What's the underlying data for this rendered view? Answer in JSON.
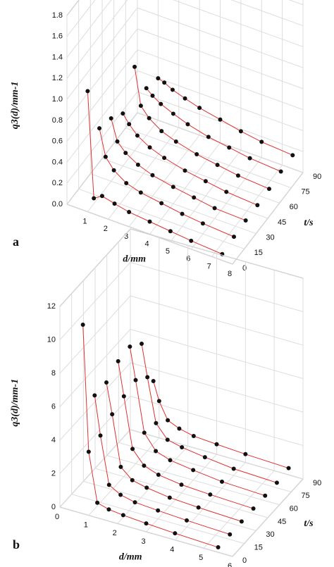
{
  "chart_data": [
    {
      "type": "line3d",
      "panel_label": "a",
      "x_label": "d/mm",
      "y_label": "t/s",
      "z_label": "q3(d)/mm-1",
      "xlim": [
        0,
        8
      ],
      "xticks": [
        1,
        2,
        3,
        4,
        5,
        6,
        7,
        8
      ],
      "ylim": [
        0,
        90
      ],
      "yticks": [
        0,
        15,
        30,
        45,
        60,
        75,
        90
      ],
      "zlim": [
        0,
        1.8
      ],
      "zticks": [
        {
          "value": 0,
          "label": "0.0"
        },
        {
          "value": 0.2,
          "label": "0.2"
        },
        {
          "value": 0.4,
          "label": "0.4"
        },
        {
          "value": 0.6,
          "label": "0.6"
        },
        {
          "value": 0.8,
          "label": "0.8"
        },
        {
          "value": 1,
          "label": "1.0"
        },
        {
          "value": 1.2,
          "label": "1.2"
        },
        {
          "value": 1.4,
          "label": "1.4"
        },
        {
          "value": 1.6,
          "label": "1.6"
        },
        {
          "value": 1.8,
          "label": "1.8"
        }
      ],
      "grid": true,
      "line_color": "#e03030",
      "marker_color": "#111111",
      "x": [
        1,
        1.3,
        1.7,
        2.3,
        3,
        4,
        5,
        6,
        7.5
      ],
      "series": [
        {
          "t": 0,
          "values": [
            1.15,
            0.15,
            0.2,
            0.17,
            0.14,
            0.12,
            0.1,
            0.08,
            0.06
          ]
        },
        {
          "t": 15,
          "values": [
            0.65,
            0.4,
            0.3,
            0.22,
            0.18,
            0.15,
            0.12,
            0.1,
            0.08
          ]
        },
        {
          "t": 30,
          "values": [
            0.6,
            0.4,
            0.32,
            0.25,
            0.2,
            0.16,
            0.13,
            0.1,
            0.09
          ]
        },
        {
          "t": 45,
          "values": [
            0.5,
            0.42,
            0.34,
            0.27,
            0.22,
            0.17,
            0.14,
            0.11,
            0.09
          ]
        },
        {
          "t": 60,
          "values": [
            0.8,
            0.45,
            0.36,
            0.28,
            0.23,
            0.18,
            0.15,
            0.12,
            0.1
          ]
        },
        {
          "t": 75,
          "values": [
            0.45,
            0.4,
            0.35,
            0.3,
            0.25,
            0.2,
            0.17,
            0.14,
            0.12
          ]
        },
        {
          "t": 90,
          "values": [
            0.4,
            0.38,
            0.34,
            0.3,
            0.26,
            0.22,
            0.18,
            0.15,
            0.13
          ]
        }
      ]
    },
    {
      "type": "line3d",
      "panel_label": "b",
      "x_label": "d/mm",
      "y_label": "t/s",
      "z_label": "q3(d)/mm-1",
      "xlim": [
        0,
        6
      ],
      "xticks": [
        0,
        1,
        2,
        3,
        4,
        5,
        6
      ],
      "ylim": [
        0,
        90
      ],
      "yticks": [
        0,
        15,
        30,
        45,
        60,
        75,
        90
      ],
      "zlim": [
        0,
        12
      ],
      "zticks": [
        0,
        2,
        4,
        6,
        8,
        10,
        12
      ],
      "grid": true,
      "line_color": "#e03030",
      "marker_color": "#111111",
      "x": [
        0.8,
        1,
        1.3,
        1.7,
        2.2,
        3,
        4,
        5.5
      ],
      "series": [
        {
          "t": 0,
          "values": [
            11.3,
            3.8,
            0.9,
            0.7,
            0.6,
            0.5,
            0.4,
            0.3
          ]
        },
        {
          "t": 15,
          "values": [
            6.3,
            4,
            1.2,
            0.8,
            0.6,
            0.5,
            0.4,
            0.3
          ]
        },
        {
          "t": 30,
          "values": [
            6.3,
            4.5,
            1.5,
            0.9,
            0.7,
            0.5,
            0.4,
            0.3
          ]
        },
        {
          "t": 45,
          "values": [
            6.8,
            4.8,
            1.8,
            1,
            0.7,
            0.5,
            0.4,
            0.3
          ]
        },
        {
          "t": 60,
          "values": [
            6.9,
            5,
            2,
            1.1,
            0.8,
            0.6,
            0.4,
            0.3
          ]
        },
        {
          "t": 75,
          "values": [
            6.3,
            4.4,
            1.8,
            1,
            0.8,
            0.6,
            0.4,
            0.3
          ]
        },
        {
          "t": 90,
          "values": [
            3.3,
            2.2,
            1.2,
            0.9,
            0.7,
            0.6,
            0.5,
            0.4
          ]
        }
      ]
    }
  ]
}
